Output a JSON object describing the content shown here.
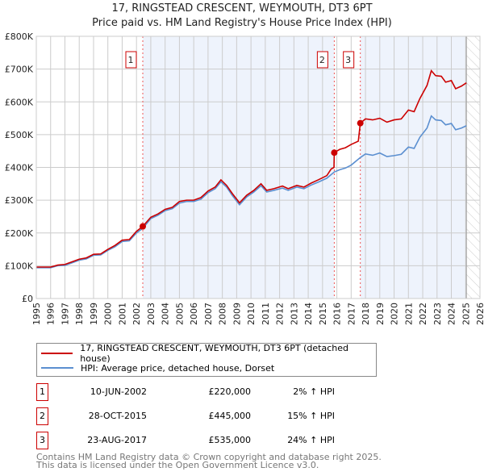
{
  "title": "17, RINGSTEAD CRESCENT, WEYMOUTH, DT3 6PT",
  "subtitle": "Price paid vs. HM Land Registry's House Price Index (HPI)",
  "legend": {
    "property": "17, RINGSTEAD CRESCENT, WEYMOUTH, DT3 6PT (detached house)",
    "hpi": "HPI: Average price, detached house, Dorset"
  },
  "sales": [
    {
      "n": "1",
      "date": "10-JUN-2002",
      "price": "£220,000",
      "delta": "2% ↑ HPI"
    },
    {
      "n": "2",
      "date": "28-OCT-2015",
      "price": "£445,000",
      "delta": "15% ↑ HPI"
    },
    {
      "n": "3",
      "date": "23-AUG-2017",
      "price": "£535,000",
      "delta": "24% ↑ HPI"
    }
  ],
  "footer": [
    "Contains HM Land Registry data © Crown copyright and database right 2025.",
    "This data is licensed under the Open Government Licence v3.0."
  ],
  "colors": {
    "property": "#cc0000",
    "hpi": "#5b8fd0",
    "shade": "#eef3fc"
  },
  "chart_data": {
    "type": "line",
    "xlim": [
      1995,
      2026
    ],
    "ylim": [
      0,
      800000
    ],
    "yticks": [
      {
        "v": 0,
        "l": "£0"
      },
      {
        "v": 100000,
        "l": "£100K"
      },
      {
        "v": 200000,
        "l": "£200K"
      },
      {
        "v": 300000,
        "l": "£300K"
      },
      {
        "v": 400000,
        "l": "£400K"
      },
      {
        "v": 500000,
        "l": "£500K"
      },
      {
        "v": 600000,
        "l": "£600K"
      },
      {
        "v": 700000,
        "l": "£700K"
      },
      {
        "v": 800000,
        "l": "£800K"
      }
    ],
    "xticks": [
      "1995",
      "1996",
      "1997",
      "1998",
      "1999",
      "2000",
      "2001",
      "2002",
      "2003",
      "2004",
      "2005",
      "2006",
      "2007",
      "2008",
      "2009",
      "2010",
      "2011",
      "2012",
      "2013",
      "2014",
      "2015",
      "2016",
      "2017",
      "2018",
      "2019",
      "2020",
      "2021",
      "2022",
      "2023",
      "2024",
      "2025",
      "2026"
    ],
    "sale_markers": [
      {
        "label": "1",
        "x": 2002.44,
        "y": 220000
      },
      {
        "label": "2",
        "x": 2015.82,
        "y": 445000
      },
      {
        "label": "3",
        "x": 2017.64,
        "y": 535000
      }
    ],
    "forecast_start": 2025.05,
    "series": [
      {
        "name": "17, RINGSTEAD CRESCENT, WEYMOUTH, DT3 6PT (detached house)",
        "points": [
          [
            1995,
            96000
          ],
          [
            1996,
            96000
          ],
          [
            1996.5,
            102000
          ],
          [
            1997,
            104000
          ],
          [
            1997.5,
            112000
          ],
          [
            1998,
            120000
          ],
          [
            1998.5,
            124000
          ],
          [
            1999,
            135000
          ],
          [
            1999.5,
            136000
          ],
          [
            2000,
            150000
          ],
          [
            2000.5,
            162000
          ],
          [
            2001,
            178000
          ],
          [
            2001.5,
            180000
          ],
          [
            2002,
            205000
          ],
          [
            2002.44,
            220000
          ],
          [
            2003,
            248000
          ],
          [
            2003.5,
            258000
          ],
          [
            2004,
            272000
          ],
          [
            2004.5,
            278000
          ],
          [
            2005,
            296000
          ],
          [
            2005.5,
            300000
          ],
          [
            2006,
            300000
          ],
          [
            2006.5,
            308000
          ],
          [
            2007,
            328000
          ],
          [
            2007.5,
            340000
          ],
          [
            2007.9,
            362000
          ],
          [
            2008.3,
            345000
          ],
          [
            2008.7,
            320000
          ],
          [
            2009.2,
            292000
          ],
          [
            2009.7,
            315000
          ],
          [
            2010.2,
            330000
          ],
          [
            2010.7,
            350000
          ],
          [
            2011.1,
            330000
          ],
          [
            2011.6,
            335000
          ],
          [
            2012.2,
            343000
          ],
          [
            2012.6,
            335000
          ],
          [
            2013.2,
            345000
          ],
          [
            2013.7,
            340000
          ],
          [
            2014.2,
            352000
          ],
          [
            2014.7,
            362000
          ],
          [
            2015.3,
            375000
          ],
          [
            2015.6,
            395000
          ],
          [
            2015.8,
            400000
          ],
          [
            2015.82,
            445000
          ],
          [
            2016.2,
            455000
          ],
          [
            2016.6,
            460000
          ],
          [
            2017,
            470000
          ],
          [
            2017.5,
            480000
          ],
          [
            2017.64,
            535000
          ],
          [
            2018,
            548000
          ],
          [
            2018.5,
            545000
          ],
          [
            2019,
            550000
          ],
          [
            2019.5,
            538000
          ],
          [
            2020,
            545000
          ],
          [
            2020.5,
            548000
          ],
          [
            2021,
            575000
          ],
          [
            2021.4,
            570000
          ],
          [
            2021.8,
            610000
          ],
          [
            2022.3,
            650000
          ],
          [
            2022.6,
            695000
          ],
          [
            2022.9,
            680000
          ],
          [
            2023.3,
            678000
          ],
          [
            2023.6,
            660000
          ],
          [
            2024,
            665000
          ],
          [
            2024.3,
            640000
          ],
          [
            2024.7,
            648000
          ],
          [
            2025.05,
            658000
          ]
        ]
      },
      {
        "name": "HPI: Average price, detached house, Dorset",
        "points": [
          [
            1995,
            94000
          ],
          [
            1996,
            94000
          ],
          [
            1996.5,
            100000
          ],
          [
            1997,
            101000
          ],
          [
            1997.5,
            109000
          ],
          [
            1998,
            117000
          ],
          [
            1998.5,
            121000
          ],
          [
            1999,
            132000
          ],
          [
            1999.5,
            133000
          ],
          [
            2000,
            147000
          ],
          [
            2000.5,
            158000
          ],
          [
            2001,
            174000
          ],
          [
            2001.5,
            176000
          ],
          [
            2002,
            200000
          ],
          [
            2002.44,
            214000
          ],
          [
            2003,
            244000
          ],
          [
            2003.5,
            254000
          ],
          [
            2004,
            268000
          ],
          [
            2004.5,
            274000
          ],
          [
            2005,
            291000
          ],
          [
            2005.5,
            296000
          ],
          [
            2006,
            296000
          ],
          [
            2006.5,
            303000
          ],
          [
            2007,
            323000
          ],
          [
            2007.5,
            335000
          ],
          [
            2007.9,
            356000
          ],
          [
            2008.3,
            340000
          ],
          [
            2008.7,
            314000
          ],
          [
            2009.2,
            286000
          ],
          [
            2009.7,
            310000
          ],
          [
            2010.2,
            325000
          ],
          [
            2010.7,
            344000
          ],
          [
            2011.1,
            325000
          ],
          [
            2011.6,
            330000
          ],
          [
            2012.2,
            337000
          ],
          [
            2012.6,
            330000
          ],
          [
            2013.2,
            340000
          ],
          [
            2013.7,
            335000
          ],
          [
            2014.2,
            346000
          ],
          [
            2014.7,
            355000
          ],
          [
            2015.3,
            367000
          ],
          [
            2015.82,
            386000
          ],
          [
            2016.2,
            393000
          ],
          [
            2016.6,
            398000
          ],
          [
            2017,
            407000
          ],
          [
            2017.64,
            430000
          ],
          [
            2018,
            441000
          ],
          [
            2018.5,
            437000
          ],
          [
            2019,
            444000
          ],
          [
            2019.5,
            433000
          ],
          [
            2020,
            436000
          ],
          [
            2020.5,
            440000
          ],
          [
            2021,
            462000
          ],
          [
            2021.4,
            458000
          ],
          [
            2021.8,
            492000
          ],
          [
            2022.3,
            520000
          ],
          [
            2022.6,
            557000
          ],
          [
            2022.9,
            545000
          ],
          [
            2023.3,
            543000
          ],
          [
            2023.6,
            530000
          ],
          [
            2024,
            534000
          ],
          [
            2024.3,
            515000
          ],
          [
            2024.7,
            520000
          ],
          [
            2025.05,
            527000
          ]
        ]
      }
    ]
  }
}
